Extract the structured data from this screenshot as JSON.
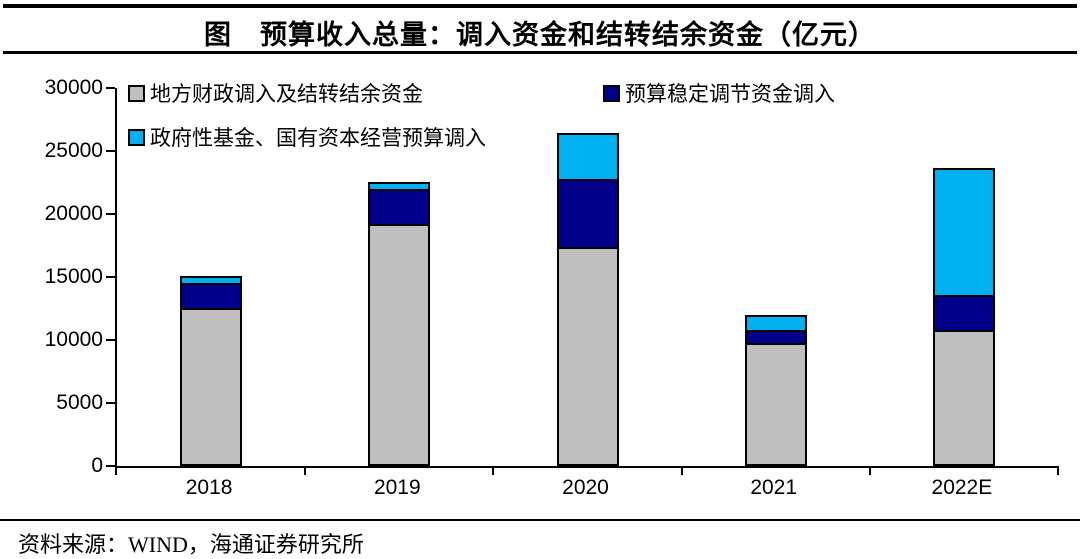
{
  "title": "图　预算收入总量：调入资金和结转结余资金（亿元）",
  "source": "资料来源：WIND，海通证券研究所",
  "colors": {
    "gray_series": "#BFBFBF",
    "navy_series": "#00008B",
    "cyan_series": "#00B0F0",
    "axis": "#000000",
    "background": "#FFFFFF"
  },
  "chart_data": {
    "type": "bar",
    "stacked": true,
    "title": "图　预算收入总量：调入资金和结转结余资金（亿元）",
    "categories": [
      "2018",
      "2019",
      "2020",
      "2021",
      "2022E"
    ],
    "series": [
      {
        "name": "地方财政调入及结转结余资金",
        "color": "#BFBFBF",
        "values": [
          12400,
          19000,
          17200,
          9700,
          10600
        ]
      },
      {
        "name": "预算稳定调节资金调入",
        "color": "#00008B",
        "values": [
          2000,
          2800,
          5400,
          1000,
          2800
        ]
      },
      {
        "name": "政府性基金、国有资本经营预算调入",
        "color": "#00B0F0",
        "values": [
          400,
          400,
          3500,
          1000,
          9900
        ]
      }
    ],
    "totals": [
      14800,
      22200,
      26100,
      11700,
      23300
    ],
    "ylim": [
      0,
      30000
    ],
    "ytick_interval": 5000,
    "ytick_labels": [
      "30000",
      "25000",
      "20000",
      "15000",
      "10000",
      "5000",
      "0"
    ],
    "grid": false,
    "legend_position": "top-left",
    "unit": "亿元"
  }
}
